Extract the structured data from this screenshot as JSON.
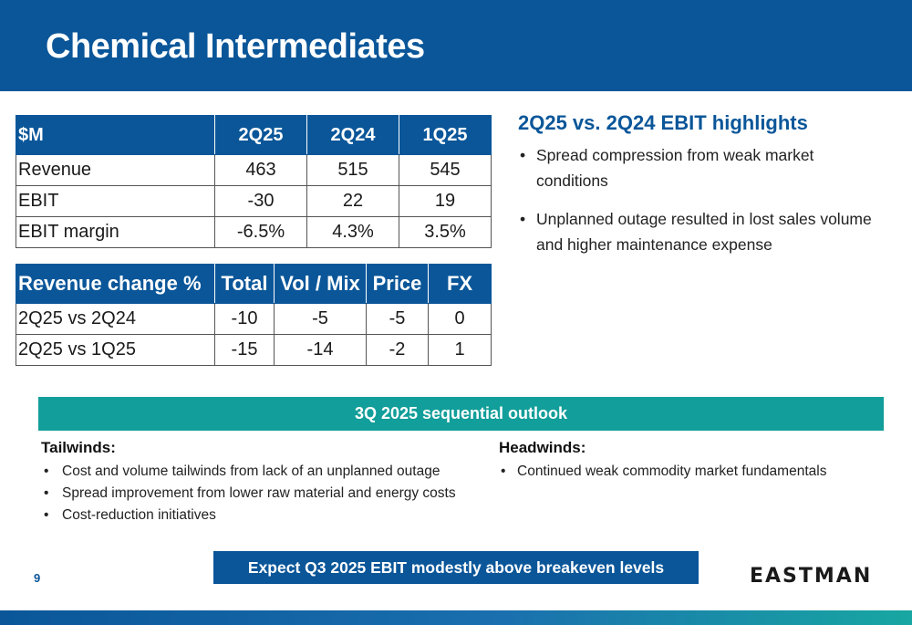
{
  "slide": {
    "title": "Chemical Intermediates",
    "page_number": "9"
  },
  "financials": {
    "headers": [
      "$M",
      "2Q25",
      "2Q24",
      "1Q25"
    ],
    "rows": [
      [
        "Revenue",
        "463",
        "515",
        "545"
      ],
      [
        "EBIT",
        "-30",
        "22",
        "19"
      ],
      [
        "EBIT margin",
        "-6.5%",
        "4.3%",
        "3.5%"
      ]
    ]
  },
  "revenue_change": {
    "headers": [
      "Revenue change %",
      "Total",
      "Vol / Mix",
      "Price",
      "FX"
    ],
    "rows": [
      [
        "2Q25 vs 2Q24",
        "-10",
        "-5",
        "-5",
        "0"
      ],
      [
        "2Q25 vs 1Q25",
        "-15",
        "-14",
        "-2",
        "1"
      ]
    ]
  },
  "highlights": {
    "title": "2Q25 vs. 2Q24 EBIT highlights",
    "bullets": [
      "Spread compression from weak market conditions",
      "Unplanned outage resulted in lost sales volume and higher maintenance expense"
    ]
  },
  "outlook": {
    "title": "3Q 2025 sequential outlook",
    "tailwinds": {
      "heading": "Tailwinds:",
      "bullets": [
        "Cost and volume tailwinds from lack of an unplanned outage",
        "Spread improvement from lower raw material and energy costs",
        "Cost-reduction initiatives"
      ]
    },
    "headwinds": {
      "heading": "Headwinds:",
      "bullets": [
        "Continued weak commodity market fundamentals"
      ]
    }
  },
  "expectation": "Expect Q3 2025 EBIT modestly above breakeven levels",
  "logo_text": "EASTMAN",
  "colors": {
    "primary_blue": "#0a5699",
    "teal": "#129e9a"
  }
}
